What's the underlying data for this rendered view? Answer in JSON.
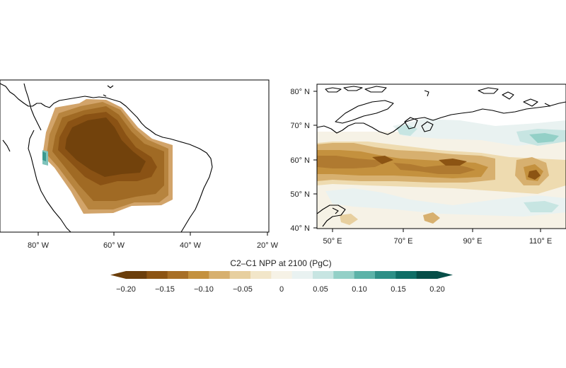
{
  "left_map": {
    "region": "South America (Amazon)",
    "lon_ticks": [
      "80° W",
      "60° W",
      "40° W",
      "20° W"
    ]
  },
  "right_map": {
    "region": "Northern Eurasia (Siberia)",
    "lat_ticks": [
      "80° N",
      "70° N",
      "60° N",
      "50° N",
      "40° N"
    ],
    "lon_ticks": [
      "50° E",
      "70° E",
      "90° E",
      "110° E"
    ]
  },
  "colorbar": {
    "title": "C2–C1 NPP at 2100 (PgC)",
    "tick_labels": [
      "−0.20",
      "−0.15",
      "−0.10",
      "−0.05",
      "0",
      "0.05",
      "0.10",
      "0.15",
      "0.20"
    ],
    "range": [
      -0.2,
      0.2
    ],
    "extend": "both",
    "colors": [
      "#6b3e0b",
      "#8c5413",
      "#a86f26",
      "#c4913e",
      "#d7b06f",
      "#e7cf9f",
      "#f2e6c9",
      "#f6f2e6",
      "#e9f2f1",
      "#c7e5e2",
      "#93d0c7",
      "#5cb3a8",
      "#2d8f86",
      "#0f6e66",
      "#064e48"
    ]
  }
}
